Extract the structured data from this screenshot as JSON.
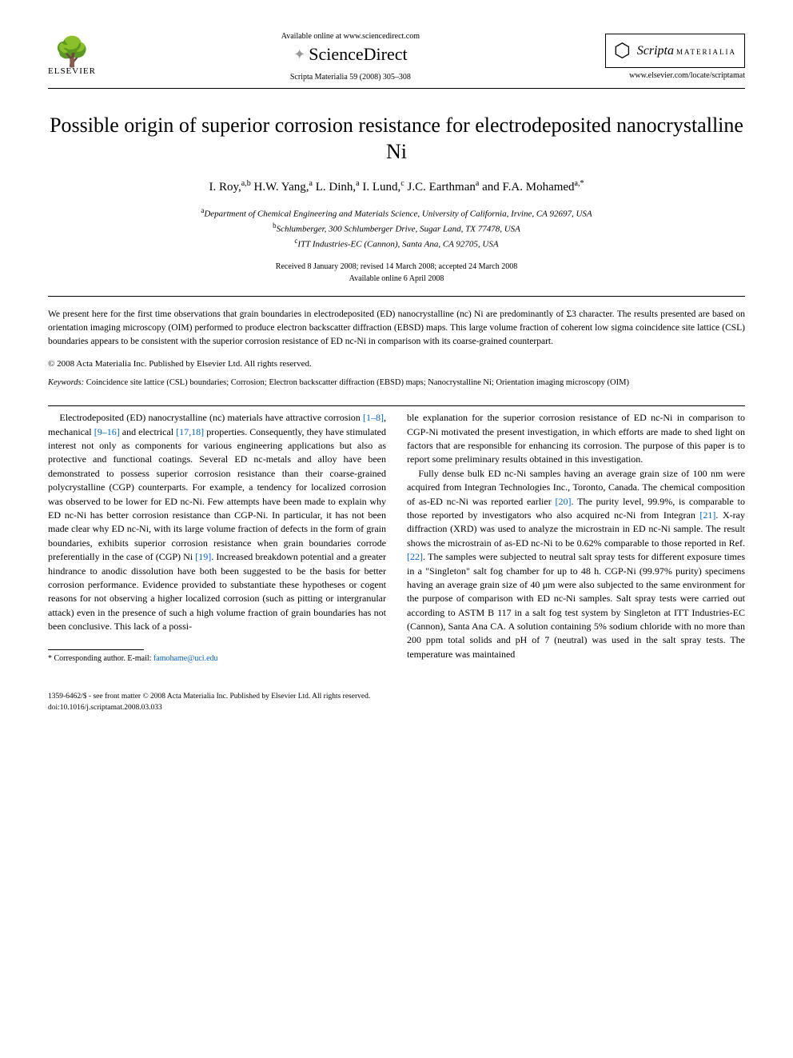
{
  "header": {
    "elsevier_text": "ELSEVIER",
    "available_online": "Available online at www.sciencedirect.com",
    "sciencedirect": "ScienceDirect",
    "journal_ref": "Scripta Materialia 59 (2008) 305–308",
    "journal_name": "Scripta",
    "journal_sub": "MATERIALIA",
    "journal_url": "www.elsevier.com/locate/scriptamat"
  },
  "title": "Possible origin of superior corrosion resistance for electrodeposited nanocrystalline Ni",
  "authors_html": "I. Roy,<sup>a,b</sup> H.W. Yang,<sup>a</sup> L. Dinh,<sup>a</sup> I. Lund,<sup>c</sup> J.C. Earthman<sup>a</sup> and F.A. Mohamed<sup>a,*</sup>",
  "affiliations": {
    "a": "Department of Chemical Engineering and Materials Science, University of California, Irvine, CA 92697, USA",
    "b": "Schlumberger, 300 Schlumberger Drive, Sugar Land, TX 77478, USA",
    "c": "ITT Industries-EC (Cannon), Santa Ana, CA 92705, USA"
  },
  "dates": {
    "received": "Received 8 January 2008; revised 14 March 2008; accepted 24 March 2008",
    "available": "Available online 6 April 2008"
  },
  "abstract": "We present here for the first time observations that grain boundaries in electrodeposited (ED) nanocrystalline (nc) Ni are predominantly of Σ3 character. The results presented are based on orientation imaging microscopy (OIM) performed to produce electron backscatter diffraction (EBSD) maps. This large volume fraction of coherent low sigma coincidence site lattice (CSL) boundaries appears to be consistent with the superior corrosion resistance of ED nc-Ni in comparison with its coarse-grained counterpart.",
  "copyright": "© 2008 Acta Materialia Inc. Published by Elsevier Ltd. All rights reserved.",
  "keywords_label": "Keywords:",
  "keywords": "Coincidence site lattice (CSL) boundaries; Corrosion; Electron backscatter diffraction (EBSD) maps; Nanocrystalline Ni; Orientation imaging microscopy (OIM)",
  "body": {
    "col1_p1_a": "Electrodeposited (ED) nanocrystalline (nc) materials have attractive corrosion ",
    "col1_p1_ref1": "[1–8]",
    "col1_p1_b": ", mechanical ",
    "col1_p1_ref2": "[9–16]",
    "col1_p1_c": " and electrical ",
    "col1_p1_ref3": "[17,18]",
    "col1_p1_d": " properties. Consequently, they have stimulated interest not only as components for various engineering applications but also as protective and functional coatings. Several ED nc-metals and alloy have been demonstrated to possess superior corrosion resistance than their coarse-grained polycrystalline (CGP) counterparts. For example, a tendency for localized corrosion was observed to be lower for ED nc-Ni. Few attempts have been made to explain why ED nc-Ni has better corrosion resistance than CGP-Ni. In particular, it has not been made clear why ED nc-Ni, with its large volume fraction of defects in the form of grain boundaries, exhibits superior corrosion resistance when grain boundaries corrode preferentially in the case of (CGP) Ni ",
    "col1_p1_ref4": "[19]",
    "col1_p1_e": ". Increased breakdown potential and a greater hindrance to anodic dissolution have both been suggested to be the basis for better corrosion performance. Evidence provided to substantiate these hypotheses or cogent reasons for not observing a higher localized corrosion (such as pitting or intergranular attack) even in the presence of such a high volume fraction of grain boundaries has not been conclusive. This lack of a possi-",
    "col2_p1": "ble explanation for the superior corrosion resistance of ED nc-Ni in comparison to CGP-Ni motivated the present investigation, in which efforts are made to shed light on factors that are responsible for enhancing its corrosion. The purpose of this paper is to report some preliminary results obtained in this investigation.",
    "col2_p2_a": "Fully dense bulk ED nc-Ni samples having an average grain size of 100 nm were acquired from Integran Technologies Inc., Toronto, Canada. The chemical composition of as-ED nc-Ni was reported earlier ",
    "col2_p2_ref1": "[20]",
    "col2_p2_b": ". The purity level, 99.9%, is comparable to those reported by investigators who also acquired nc-Ni from Integran ",
    "col2_p2_ref2": "[21]",
    "col2_p2_c": ". X-ray diffraction (XRD) was used to analyze the microstrain in ED nc-Ni sample. The result shows the microstrain of as-ED nc-Ni to be 0.62% comparable to those reported in Ref. ",
    "col2_p2_ref3": "[22]",
    "col2_p2_d": ". The samples were subjected to neutral salt spray tests for different exposure times in a \"Singleton\" salt fog chamber for up to 48 h. CGP-Ni (99.97% purity) specimens having an average grain size of 40 μm were also subjected to the same environment for the purpose of comparison with ED nc-Ni samples. Salt spray tests were carried out according to ASTM B 117 in a salt fog test system by Singleton at ITT Industries-EC (Cannon), Santa Ana CA. A solution containing 5% sodium chloride with no more than 200 ppm total solids and pH of 7 (neutral) was used in the salt spray tests. The temperature was maintained"
  },
  "corresponding": {
    "label": "* Corresponding author. E-mail: ",
    "email": "famohame@uci.edu"
  },
  "footer": {
    "line1": "1359-6462/$ - see front matter © 2008 Acta Materialia Inc. Published by Elsevier Ltd. All rights reserved.",
    "line2": "doi:10.1016/j.scriptamat.2008.03.033"
  }
}
